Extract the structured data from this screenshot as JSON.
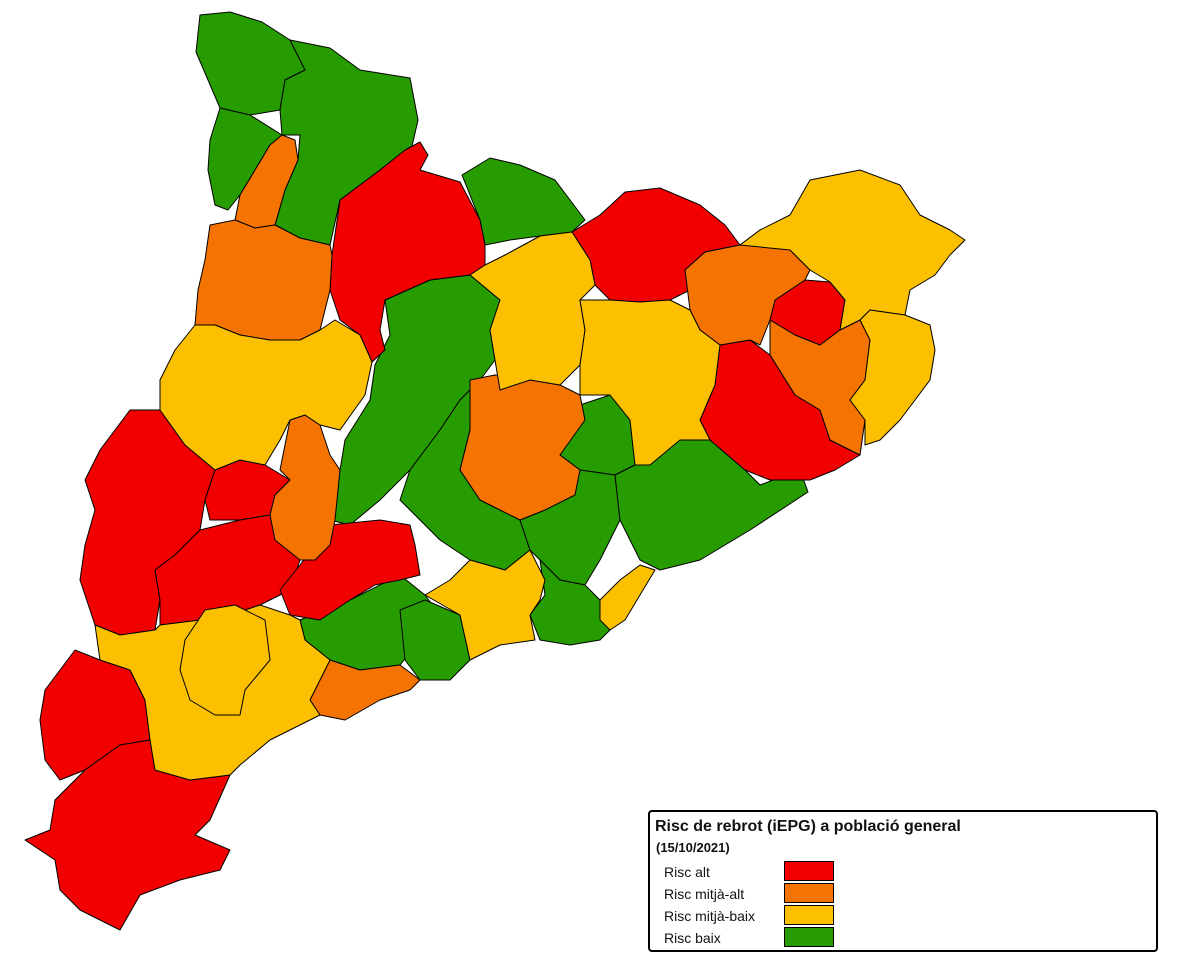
{
  "legend": {
    "title": "Risc de rebrot (iEPG) a població general",
    "date": "(15/10/2021)",
    "categories": [
      {
        "label": "Risc alt",
        "color": "#f20000"
      },
      {
        "label": "Risc mitjà-alt",
        "color": "#f57300"
      },
      {
        "label": "Risc mitjà-baix",
        "color": "#fcc000"
      },
      {
        "label": "Risc baix",
        "color": "#279c00"
      }
    ]
  }
}
